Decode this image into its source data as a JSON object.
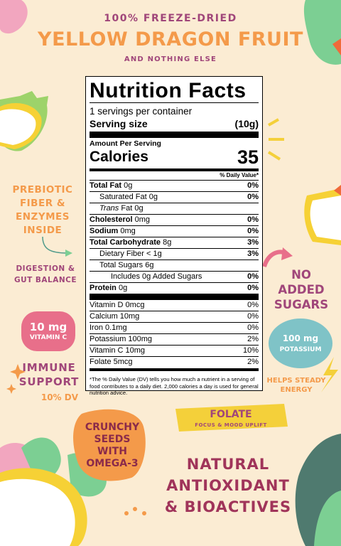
{
  "header": {
    "top": "100% FREEZE-DRIED",
    "title": "YELLOW DRAGON FRUIT",
    "subtitle": "AND NOTHING ELSE"
  },
  "label": {
    "title": "Nutrition Facts",
    "servings": "1 servings per container",
    "serving_size_label": "Serving size",
    "serving_size_value": "(10g)",
    "amount_per_serving": "Amount Per Serving",
    "calories_label": "Calories",
    "calories_value": "35",
    "dv_header": "% Daily Value*",
    "rows": [
      {
        "name": "Total Fat",
        "amount": "0g",
        "dv": "0%"
      },
      {
        "name": "Saturated Fat",
        "amount": "0g",
        "dv": "0%"
      },
      {
        "name": "Trans",
        "amount": "Fat 0g",
        "dv": ""
      },
      {
        "name": "Cholesterol",
        "amount": "0mg",
        "dv": "0%"
      },
      {
        "name": "Sodium",
        "amount": "0mg",
        "dv": "0%"
      },
      {
        "name": "Total Carbohydrate",
        "amount": "8g",
        "dv": "3%"
      },
      {
        "name": "Dietary Fiber < 1g",
        "amount": "",
        "dv": "3%"
      },
      {
        "name": "Total Sugars 6g",
        "amount": "",
        "dv": ""
      },
      {
        "name": "Includes 0g Added Sugars",
        "amount": "",
        "dv": "0%"
      },
      {
        "name": "Protein",
        "amount": "0g",
        "dv": "0%"
      }
    ],
    "vitamins": [
      {
        "name": "Vitamin D 0mcg",
        "dv": "0%"
      },
      {
        "name": "Calcium 10mg",
        "dv": "0%"
      },
      {
        "name": "Iron 0.1mg",
        "dv": "0%"
      },
      {
        "name": "Potassium 100mg",
        "dv": "2%"
      },
      {
        "name": "Vitamin C 10mg",
        "dv": "10%"
      },
      {
        "name": "Folate 5mcg",
        "dv": "2%"
      }
    ],
    "footnote": "*The % Daily Value (DV) tells you how much a nutrient in a serving of food contributes to a daily diet. 2,000 calories a day is used for general nutrition advice."
  },
  "callouts": {
    "prebiotic": "PREBIOTIC FIBER & ENZYMES INSIDE",
    "digestion": "DIGESTION & GUT BALANCE",
    "vitc_amount": "10 mg",
    "vitc_name": "VITAMIN C",
    "immune": "IMMUNE SUPPORT",
    "immune_dv": "10% DV",
    "no_added": "NO ADDED SUGARS",
    "potassium_amount": "100 mg",
    "potassium_name": "POTASSIUM",
    "steady": "HELPS STEADY ENERGY",
    "folate": "FOLATE",
    "folate_sub": "FOCUS & MOOD UPLIFT",
    "crunchy": "CRUNCHY SEEDS WITH OMEGA-3",
    "natural": "NATURAL ANTIOXIDANT & BIOACTIVES"
  },
  "colors": {
    "background": "#fbecd3",
    "orange": "#f49a4a",
    "plum": "#a0467a",
    "pink": "#e86f8a",
    "teal": "#4f7a6f",
    "green": "#7ccf93",
    "yellow": "#f4d03a"
  }
}
